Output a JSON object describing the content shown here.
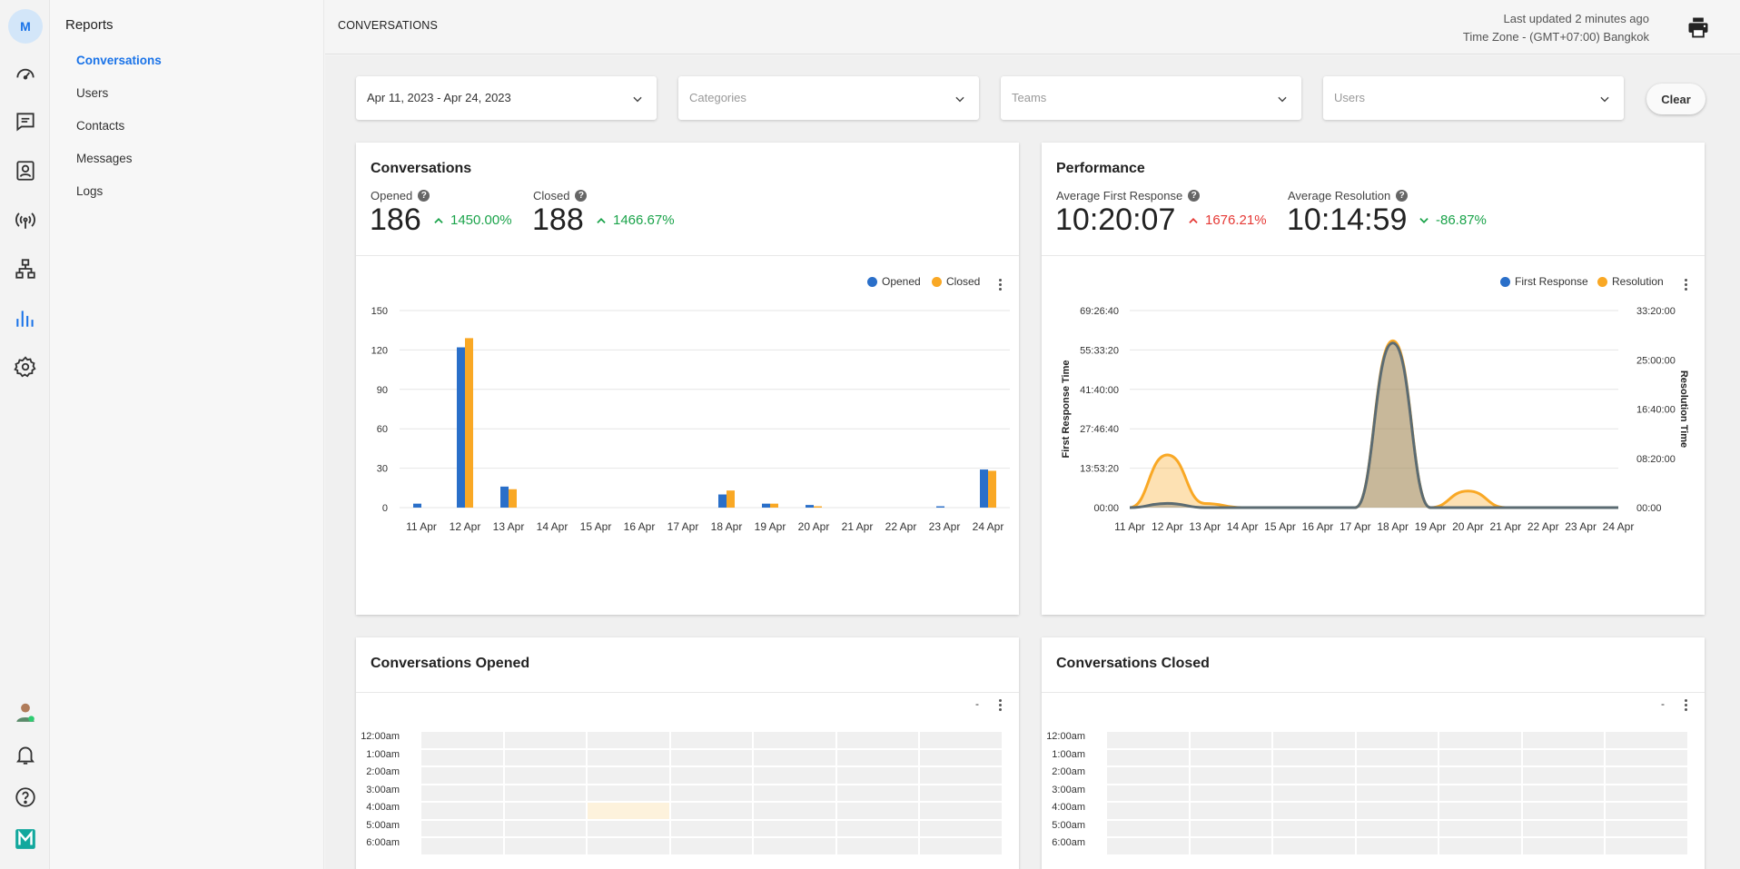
{
  "rail": {
    "avatar_initial": "M",
    "icons": [
      "dashboard-icon",
      "chat-icon",
      "contacts-icon",
      "broadcast-icon",
      "workflow-icon",
      "reports-icon",
      "settings-icon"
    ],
    "bottom_icons": [
      "user-avatar",
      "bell-icon",
      "help-icon",
      "logo-icon"
    ]
  },
  "subnav": {
    "title": "Reports",
    "items": [
      {
        "label": "Conversations",
        "active": true
      },
      {
        "label": "Users",
        "active": false
      },
      {
        "label": "Contacts",
        "active": false
      },
      {
        "label": "Messages",
        "active": false
      },
      {
        "label": "Logs",
        "active": false
      }
    ]
  },
  "header": {
    "title": "CONVERSATIONS",
    "last_updated": "Last updated 2 minutes ago",
    "timezone": "Time Zone - (GMT+07:00) Bangkok"
  },
  "filters": {
    "date_range": "Apr 11, 2023 - Apr 24, 2023",
    "categories_placeholder": "Categories",
    "teams_placeholder": "Teams",
    "users_placeholder": "Users",
    "clear_label": "Clear"
  },
  "conversations_card": {
    "title": "Conversations",
    "opened_label": "Opened",
    "opened_value": "186",
    "opened_change": "1450.00%",
    "closed_label": "Closed",
    "closed_value": "188",
    "closed_change": "1466.67%",
    "legend_opened": "Opened",
    "legend_closed": "Closed"
  },
  "performance_card": {
    "title": "Performance",
    "afr_label": "Average First Response",
    "afr_value": "10:20:07",
    "afr_change": "1676.21%",
    "ar_label": "Average Resolution",
    "ar_value": "10:14:59",
    "ar_change": "-86.87%",
    "legend_first": "First Response",
    "legend_resolution": "Resolution"
  },
  "opened_card": {
    "title": "Conversations Opened",
    "legend": "-",
    "hours": [
      "12:00am",
      "1:00am",
      "2:00am",
      "3:00am",
      "4:00am",
      "5:00am",
      "6:00am"
    ]
  },
  "closed_card": {
    "title": "Conversations Closed",
    "legend": "-",
    "hours": [
      "12:00am",
      "1:00am",
      "2:00am",
      "3:00am",
      "4:00am",
      "5:00am",
      "6:00am"
    ]
  },
  "colors": {
    "opened": "#2a6fc9",
    "closed": "#f9a825",
    "accent": "#1a73e8",
    "good": "#1aa34a",
    "bad": "#e53935"
  },
  "chart_data": [
    {
      "type": "bar",
      "categories": [
        "11 Apr",
        "12 Apr",
        "13 Apr",
        "14 Apr",
        "15 Apr",
        "16 Apr",
        "17 Apr",
        "18 Apr",
        "19 Apr",
        "20 Apr",
        "21 Apr",
        "22 Apr",
        "23 Apr",
        "24 Apr"
      ],
      "series": [
        {
          "name": "Opened",
          "values": [
            3,
            122,
            16,
            0,
            0,
            0,
            0,
            10,
            3,
            2,
            0,
            0,
            1,
            29
          ]
        },
        {
          "name": "Closed",
          "values": [
            0,
            129,
            14,
            0,
            0,
            0,
            0,
            13,
            3,
            1,
            0,
            0,
            0,
            28
          ]
        }
      ],
      "yticks": [
        "0",
        "30",
        "60",
        "90",
        "120",
        "150"
      ],
      "ylim": [
        0,
        150
      ],
      "grid": true,
      "legend": "top-right"
    },
    {
      "type": "area",
      "categories": [
        "11 Apr",
        "12 Apr",
        "13 Apr",
        "14 Apr",
        "15 Apr",
        "16 Apr",
        "17 Apr",
        "18 Apr",
        "19 Apr",
        "20 Apr",
        "21 Apr",
        "22 Apr",
        "23 Apr",
        "24 Apr"
      ],
      "series": [
        {
          "name": "First Response",
          "axis": "left",
          "values_hours": [
            0,
            1.5,
            0,
            0,
            0,
            0,
            0,
            58,
            0,
            0,
            0,
            0,
            0,
            0
          ]
        },
        {
          "name": "Resolution",
          "axis": "right",
          "values_hours": [
            0,
            8.9,
            0.7,
            0,
            0,
            0,
            0,
            28.2,
            0,
            2.8,
            0,
            0,
            0,
            0
          ]
        }
      ],
      "ylabel_left": "First Response Time",
      "ylabel_right": "Resolution Time",
      "yticks_left": [
        "00:00",
        "13:53:20",
        "27:46:40",
        "41:40:00",
        "55:33:20",
        "69:26:40"
      ],
      "yticks_right": [
        "00:00",
        "08:20:00",
        "16:40:00",
        "25:00:00",
        "33:20:00"
      ],
      "ylim_left_hours": [
        0,
        69.44
      ],
      "ylim_right_hours": [
        0,
        33.33
      ],
      "grid": true,
      "legend": "top-right"
    }
  ]
}
